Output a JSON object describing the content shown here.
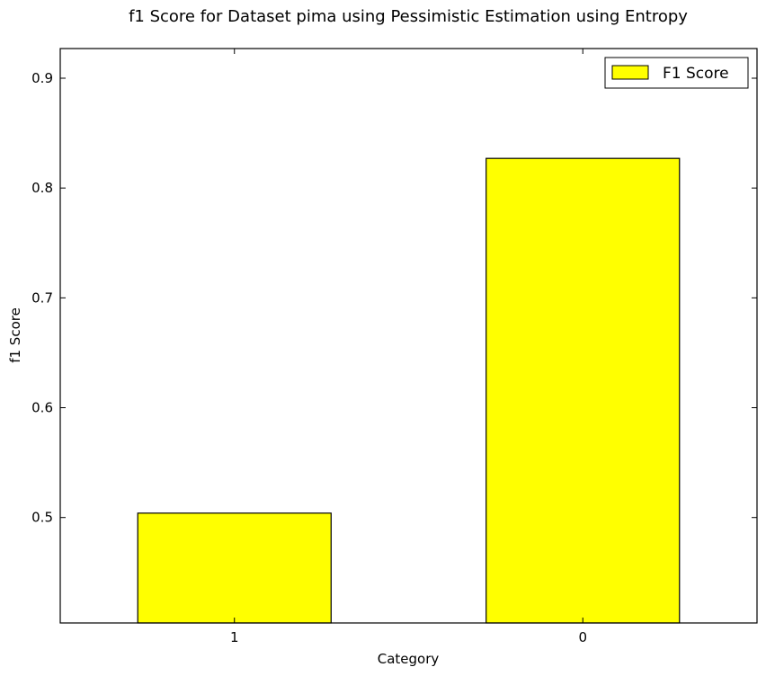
{
  "chart_data": {
    "type": "bar",
    "title": "f1 Score for Dataset pima using Pessimistic Estimation using Entropy",
    "xlabel": "Category",
    "ylabel": "f1 Score",
    "categories": [
      "1",
      "0"
    ],
    "series": [
      {
        "name": "F1 Score",
        "values": [
          0.504,
          0.827
        ]
      }
    ],
    "ylim": [
      0.404,
      0.927
    ],
    "yticks": [
      0.5,
      0.6,
      0.7,
      0.8,
      0.9
    ],
    "ytick_labels": [
      "0.5",
      "0.6",
      "0.7",
      "0.8",
      "0.9"
    ],
    "bar_color": "#ffff00",
    "grid": false,
    "legend_position": "top-right"
  }
}
